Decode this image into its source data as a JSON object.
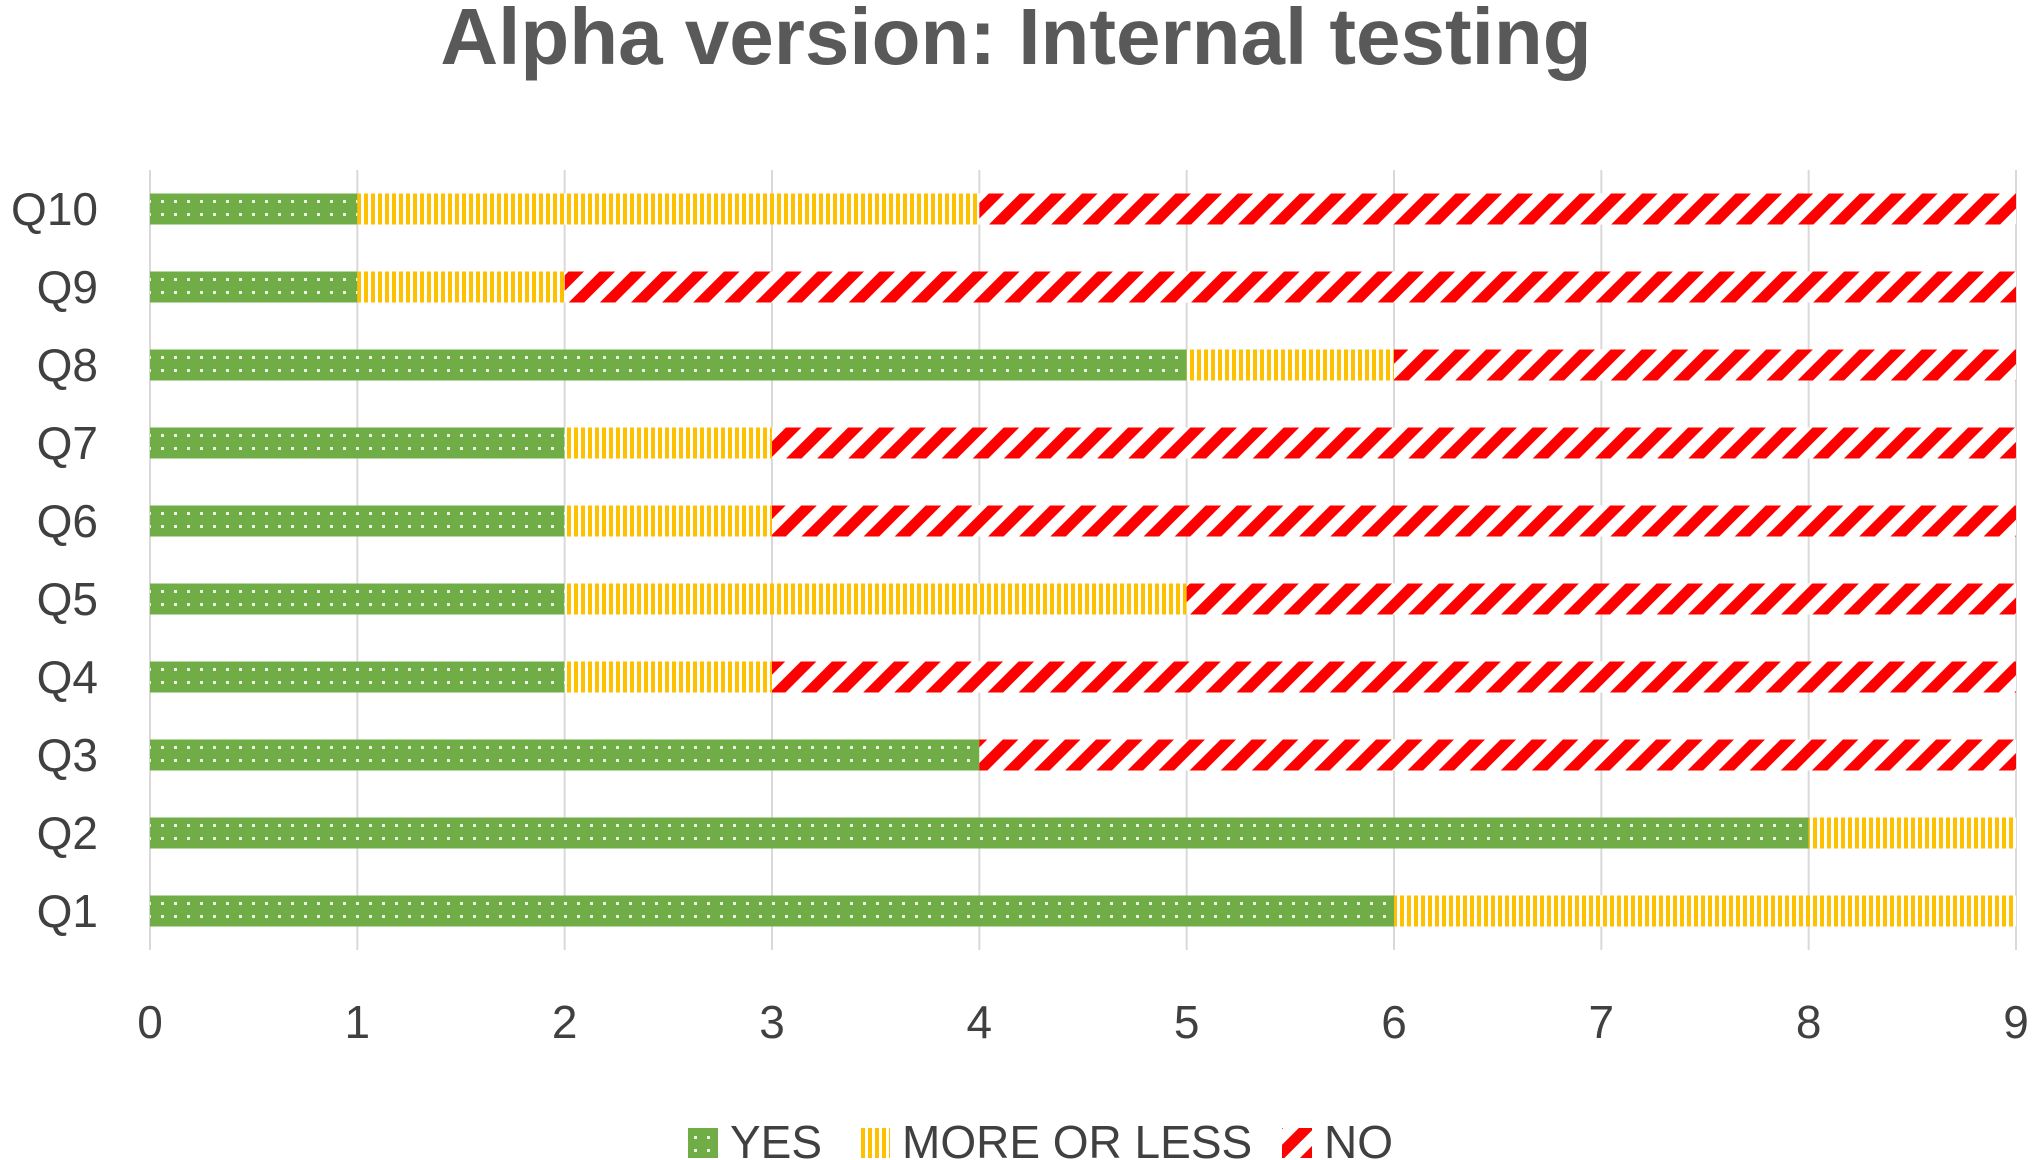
{
  "chart_data": {
    "type": "bar",
    "orientation": "horizontal",
    "stacked": true,
    "title": "Alpha version: Internal testing",
    "xlabel": "",
    "ylabel": "",
    "categories": [
      "Q1",
      "Q2",
      "Q3",
      "Q4",
      "Q5",
      "Q6",
      "Q7",
      "Q8",
      "Q9",
      "Q10"
    ],
    "series": [
      {
        "name": "YES",
        "values": [
          6,
          8,
          4,
          2,
          2,
          2,
          2,
          5,
          1,
          1
        ],
        "color": "#70AD47",
        "pattern": "dots"
      },
      {
        "name": "MORE OR LESS",
        "values": [
          3,
          1,
          0,
          1,
          3,
          1,
          1,
          1,
          1,
          3
        ],
        "color": "#FFC000",
        "pattern": "vertical-lines"
      },
      {
        "name": "NO",
        "values": [
          0,
          0,
          5,
          6,
          4,
          6,
          6,
          3,
          7,
          5
        ],
        "color": "#FF0000",
        "pattern": "diagonal-stripes"
      }
    ],
    "xlim": [
      0,
      9
    ],
    "xticks": [
      0,
      1,
      2,
      3,
      4,
      5,
      6,
      7,
      8,
      9
    ],
    "grid": "vertical",
    "legend": "bottom"
  }
}
